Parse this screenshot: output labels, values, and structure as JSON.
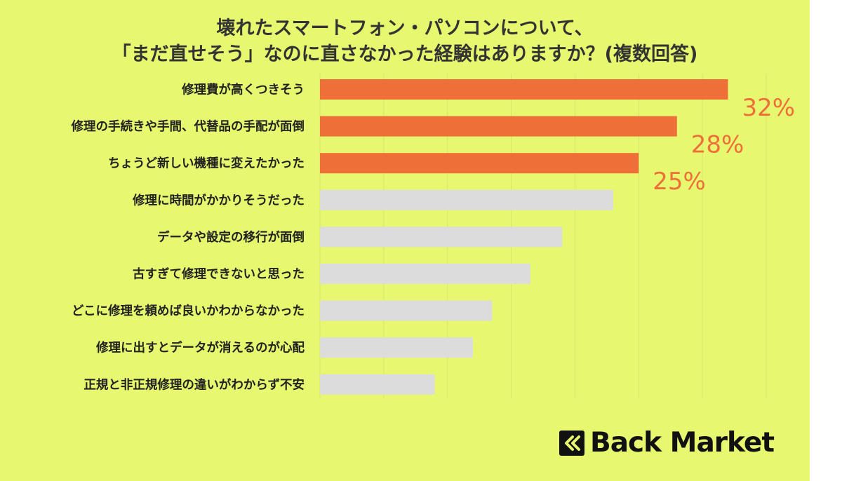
{
  "chart_data": {
    "type": "bar",
    "orientation": "horizontal",
    "title": "壊れたスマートフォン・パソコンについて、\n「まだ直せそう」なのに直さなかった経験はありますか？(複数回答)",
    "categories": [
      "修理費が高くつきそう",
      "修理の手続きや手間、代替品の手配が面倒",
      "ちょうど新しい機種に変えたかった",
      "修理に時間がかかりそうだった",
      "データや設定の移行が面倒",
      "古すぎて修理できないと思った",
      "どこに修理を頼めば良いかわからなかった",
      "修理に出すとデータが消えるのが心配",
      "正規と非正規修理の違いがわからず不安"
    ],
    "values": [
      32,
      28,
      25,
      23,
      19,
      16.5,
      13.5,
      12,
      9
    ],
    "value_labels": [
      "32%",
      "28%",
      "25%",
      "",
      "",
      "",
      "",
      "",
      ""
    ],
    "highlight_count": 3,
    "xlabel": "",
    "ylabel": "",
    "xlim": [
      0,
      35
    ],
    "grid": "vertical",
    "legend": "none",
    "colors": {
      "highlight": "#ee7038",
      "default": "#dcdcdc",
      "background": "#e7f76f",
      "label": "#ee7038"
    }
  },
  "title_lines": [
    "壊れたスマートフォン・パソコンについて、",
    "「まだ直せそう」なのに直さなかった経験はありますか？(複数回答)"
  ],
  "brand": {
    "name": "Back Market",
    "icon": "back-market-logo-icon"
  }
}
